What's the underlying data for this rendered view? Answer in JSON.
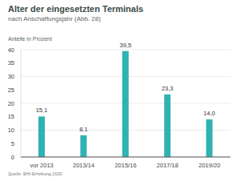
{
  "chart_data": {
    "type": "bar",
    "title": "Alter der eingesetzten Terminals",
    "subtitle": "nach Anschaffungsjahr (Abb. 28)",
    "ylabel": "Anteile in Prozent",
    "source": "Quelle: EHI-Erhebung 2020",
    "categories": [
      "vor 2013",
      "2013/14",
      "2015/16",
      "2017/18",
      "2019/20"
    ],
    "values": [
      15.1,
      8.1,
      39.5,
      23.3,
      14.0
    ],
    "value_labels": [
      "15,1",
      "8,1",
      "39,5",
      "23,3",
      "14,0"
    ],
    "color": "#2db3b0",
    "ylim": [
      0,
      40
    ],
    "yticks": [
      0,
      5,
      10,
      15,
      20,
      25,
      30,
      35,
      40
    ],
    "grid": true,
    "data_labels": true
  }
}
